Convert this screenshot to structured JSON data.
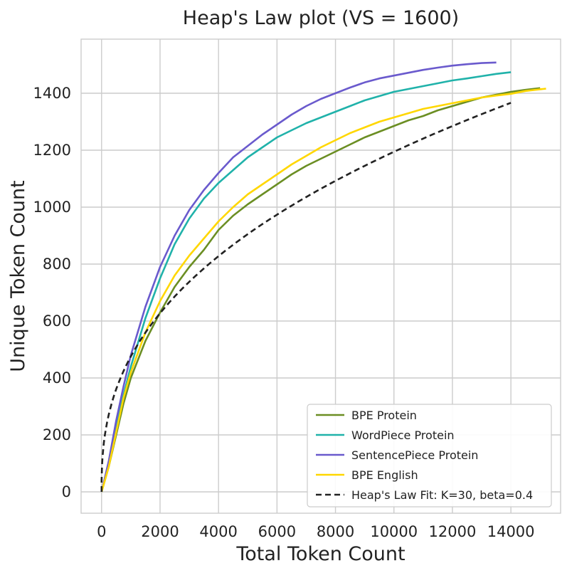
{
  "chart_data": {
    "type": "line",
    "title": "Heap's Law plot (VS = 1600)",
    "xlabel": "Total Token Count",
    "ylabel": "Unique Token Count",
    "xlim": [
      -700,
      15700
    ],
    "ylim": [
      -75,
      1590
    ],
    "xticks": [
      0,
      2000,
      4000,
      6000,
      8000,
      10000,
      12000,
      14000
    ],
    "yticks": [
      0,
      200,
      400,
      600,
      800,
      1000,
      1200,
      1400
    ],
    "grid": true,
    "legend_position": "lower-right",
    "series": [
      {
        "name": "BPE Protein",
        "color": "#6b8e23",
        "dash": "solid",
        "points": [
          [
            0,
            0
          ],
          [
            250,
            90
          ],
          [
            500,
            200
          ],
          [
            750,
            310
          ],
          [
            1000,
            400
          ],
          [
            1500,
            530
          ],
          [
            2000,
            630
          ],
          [
            2500,
            720
          ],
          [
            3000,
            790
          ],
          [
            3500,
            850
          ],
          [
            4000,
            920
          ],
          [
            4500,
            970
          ],
          [
            5000,
            1010
          ],
          [
            5500,
            1045
          ],
          [
            6000,
            1080
          ],
          [
            6500,
            1115
          ],
          [
            7000,
            1145
          ],
          [
            7500,
            1170
          ],
          [
            8000,
            1195
          ],
          [
            8500,
            1220
          ],
          [
            9000,
            1245
          ],
          [
            9500,
            1265
          ],
          [
            10000,
            1285
          ],
          [
            10500,
            1305
          ],
          [
            11000,
            1320
          ],
          [
            11500,
            1340
          ],
          [
            12000,
            1355
          ],
          [
            12500,
            1370
          ],
          [
            13000,
            1385
          ],
          [
            13500,
            1395
          ],
          [
            14000,
            1405
          ],
          [
            14500,
            1412
          ],
          [
            15000,
            1418
          ]
        ]
      },
      {
        "name": "WordPiece Protein",
        "color": "#20b2aa",
        "dash": "solid",
        "points": [
          [
            0,
            0
          ],
          [
            250,
            100
          ],
          [
            500,
            230
          ],
          [
            750,
            340
          ],
          [
            1000,
            440
          ],
          [
            1500,
            610
          ],
          [
            2000,
            750
          ],
          [
            2500,
            870
          ],
          [
            3000,
            960
          ],
          [
            3500,
            1030
          ],
          [
            4000,
            1085
          ],
          [
            4500,
            1130
          ],
          [
            5000,
            1175
          ],
          [
            5500,
            1210
          ],
          [
            6000,
            1245
          ],
          [
            6500,
            1270
          ],
          [
            7000,
            1295
          ],
          [
            7500,
            1315
          ],
          [
            8000,
            1335
          ],
          [
            8500,
            1355
          ],
          [
            9000,
            1375
          ],
          [
            9500,
            1390
          ],
          [
            10000,
            1405
          ],
          [
            10500,
            1415
          ],
          [
            11000,
            1425
          ],
          [
            11500,
            1435
          ],
          [
            12000,
            1445
          ],
          [
            12500,
            1452
          ],
          [
            13000,
            1460
          ],
          [
            13500,
            1468
          ],
          [
            14000,
            1474
          ]
        ]
      },
      {
        "name": "SentencePiece Protein",
        "color": "#6a5acd",
        "dash": "solid",
        "points": [
          [
            0,
            0
          ],
          [
            250,
            110
          ],
          [
            500,
            250
          ],
          [
            750,
            370
          ],
          [
            1000,
            480
          ],
          [
            1500,
            650
          ],
          [
            2000,
            790
          ],
          [
            2500,
            900
          ],
          [
            3000,
            990
          ],
          [
            3500,
            1060
          ],
          [
            4000,
            1120
          ],
          [
            4500,
            1175
          ],
          [
            5000,
            1215
          ],
          [
            5500,
            1255
          ],
          [
            6000,
            1290
          ],
          [
            6500,
            1325
          ],
          [
            7000,
            1355
          ],
          [
            7500,
            1380
          ],
          [
            8000,
            1400
          ],
          [
            8500,
            1420
          ],
          [
            9000,
            1438
          ],
          [
            9500,
            1452
          ],
          [
            10000,
            1462
          ],
          [
            10500,
            1472
          ],
          [
            11000,
            1482
          ],
          [
            11500,
            1490
          ],
          [
            12000,
            1497
          ],
          [
            12500,
            1502
          ],
          [
            13000,
            1506
          ],
          [
            13500,
            1508
          ]
        ]
      },
      {
        "name": "BPE English",
        "color": "#ffd700",
        "dash": "solid",
        "points": [
          [
            0,
            0
          ],
          [
            250,
            90
          ],
          [
            500,
            210
          ],
          [
            750,
            330
          ],
          [
            1000,
            420
          ],
          [
            1500,
            560
          ],
          [
            2000,
            670
          ],
          [
            2500,
            760
          ],
          [
            3000,
            830
          ],
          [
            3500,
            890
          ],
          [
            4000,
            950
          ],
          [
            4500,
            1000
          ],
          [
            5000,
            1045
          ],
          [
            5500,
            1080
          ],
          [
            6000,
            1115
          ],
          [
            6500,
            1150
          ],
          [
            7000,
            1180
          ],
          [
            7500,
            1210
          ],
          [
            8000,
            1235
          ],
          [
            8500,
            1260
          ],
          [
            9000,
            1280
          ],
          [
            9500,
            1300
          ],
          [
            10000,
            1315
          ],
          [
            10500,
            1330
          ],
          [
            11000,
            1345
          ],
          [
            11500,
            1355
          ],
          [
            12000,
            1365
          ],
          [
            12500,
            1375
          ],
          [
            13000,
            1385
          ],
          [
            13500,
            1392
          ],
          [
            14000,
            1398
          ],
          [
            14500,
            1408
          ],
          [
            15000,
            1414
          ],
          [
            15200,
            1416
          ]
        ]
      },
      {
        "name": "Heap's Law Fit: K=30, beta=0.4",
        "color": "#222222",
        "dash": "dashed",
        "formula": {
          "K": 30,
          "beta": 0.4
        },
        "x_start": 1,
        "x_end": 14000
      }
    ]
  }
}
